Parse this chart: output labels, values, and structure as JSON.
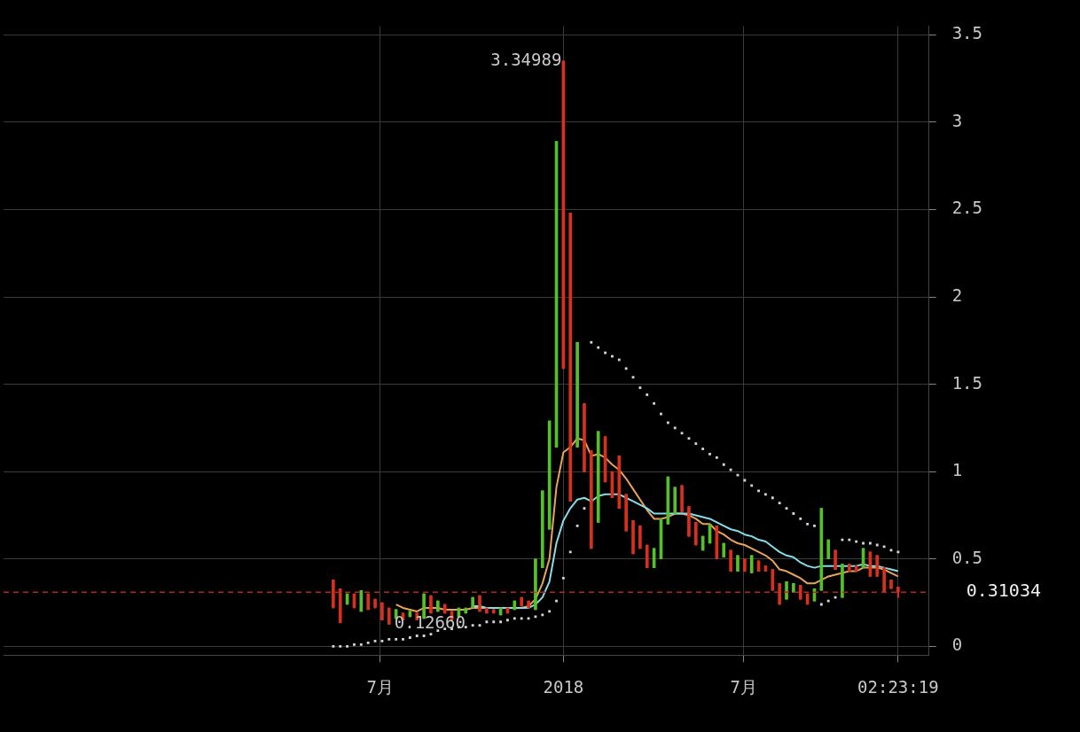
{
  "chart_data": {
    "type": "candlestick",
    "x": [
      "2017-05-15",
      "2017-05-22",
      "2017-05-29",
      "2017-06-05",
      "2017-06-12",
      "2017-06-19",
      "2017-06-26",
      "2017-07-03",
      "2017-07-10",
      "2017-07-17",
      "2017-07-24",
      "2017-07-31",
      "2017-08-07",
      "2017-08-14",
      "2017-08-21",
      "2017-08-28",
      "2017-09-04",
      "2017-09-11",
      "2017-09-18",
      "2017-09-25",
      "2017-10-02",
      "2017-10-09",
      "2017-10-16",
      "2017-10-23",
      "2017-10-30",
      "2017-11-06",
      "2017-11-13",
      "2017-11-20",
      "2017-11-27",
      "2017-12-04",
      "2017-12-11",
      "2017-12-18",
      "2017-12-25",
      "2018-01-01",
      "2018-01-08",
      "2018-01-15",
      "2018-01-22",
      "2018-01-29",
      "2018-02-05",
      "2018-02-12",
      "2018-02-19",
      "2018-02-26",
      "2018-03-05",
      "2018-03-12",
      "2018-03-19",
      "2018-03-26",
      "2018-04-02",
      "2018-04-09",
      "2018-04-16",
      "2018-04-23",
      "2018-04-30",
      "2018-05-07",
      "2018-05-14",
      "2018-05-21",
      "2018-05-28",
      "2018-06-04",
      "2018-06-11",
      "2018-06-18",
      "2018-06-25",
      "2018-07-02",
      "2018-07-09",
      "2018-07-16",
      "2018-07-23",
      "2018-07-30",
      "2018-08-06",
      "2018-08-13",
      "2018-08-20",
      "2018-08-27",
      "2018-09-03",
      "2018-09-10",
      "2018-09-17",
      "2018-09-24",
      "2018-10-01",
      "2018-10-08",
      "2018-10-15",
      "2018-10-22",
      "2018-10-29",
      "2018-11-05",
      "2018-11-12",
      "2018-11-19",
      "2018-11-26",
      "2018-12-03"
    ],
    "ohlc": [
      [
        0.38,
        0.38,
        0.22,
        0.22
      ],
      [
        0.33,
        0.33,
        0.135,
        0.135
      ],
      [
        0.24,
        0.3,
        0.24,
        0.3
      ],
      [
        0.3,
        0.3,
        0.22,
        0.22
      ],
      [
        0.2,
        0.32,
        0.2,
        0.32
      ],
      [
        0.3,
        0.3,
        0.21,
        0.21
      ],
      [
        0.27,
        0.27,
        0.22,
        0.22
      ],
      [
        0.25,
        0.25,
        0.15,
        0.15
      ],
      [
        0.22,
        0.22,
        0.1266,
        0.1266
      ],
      [
        0.16,
        0.21,
        0.16,
        0.21
      ],
      [
        0.19,
        0.19,
        0.15,
        0.15
      ],
      [
        0.17,
        0.2,
        0.17,
        0.2
      ],
      [
        0.19,
        0.19,
        0.15,
        0.15
      ],
      [
        0.16,
        0.3,
        0.16,
        0.3
      ],
      [
        0.29,
        0.29,
        0.19,
        0.19
      ],
      [
        0.2,
        0.26,
        0.2,
        0.26
      ],
      [
        0.24,
        0.24,
        0.19,
        0.19
      ],
      [
        0.2,
        0.2,
        0.15,
        0.15
      ],
      [
        0.17,
        0.22,
        0.17,
        0.22
      ],
      [
        0.19,
        0.22,
        0.19,
        0.22
      ],
      [
        0.22,
        0.28,
        0.22,
        0.28
      ],
      [
        0.29,
        0.29,
        0.2,
        0.2
      ],
      [
        0.22,
        0.22,
        0.19,
        0.19
      ],
      [
        0.21,
        0.21,
        0.19,
        0.19
      ],
      [
        0.18,
        0.22,
        0.18,
        0.22
      ],
      [
        0.22,
        0.22,
        0.19,
        0.19
      ],
      [
        0.21,
        0.26,
        0.21,
        0.26
      ],
      [
        0.28,
        0.28,
        0.23,
        0.23
      ],
      [
        0.26,
        0.26,
        0.22,
        0.22
      ],
      [
        0.21,
        0.5,
        0.21,
        0.5
      ],
      [
        0.45,
        0.89,
        0.45,
        0.89
      ],
      [
        0.67,
        1.29,
        0.67,
        1.29
      ],
      [
        1.14,
        2.89,
        1.14,
        2.89
      ],
      [
        3.34989,
        3.34989,
        1.59,
        1.59
      ],
      [
        2.48,
        2.48,
        0.83,
        0.83
      ],
      [
        1.14,
        1.74,
        1.14,
        1.74
      ],
      [
        1.39,
        1.39,
        1.0,
        1.0
      ],
      [
        1.12,
        1.12,
        0.56,
        0.56
      ],
      [
        0.71,
        1.23,
        0.71,
        1.23
      ],
      [
        1.2,
        1.2,
        0.94,
        0.94
      ],
      [
        1.0,
        1.0,
        0.85,
        0.85
      ],
      [
        1.09,
        1.09,
        0.79,
        0.79
      ],
      [
        0.87,
        0.87,
        0.66,
        0.66
      ],
      [
        0.72,
        0.72,
        0.53,
        0.53
      ],
      [
        0.69,
        0.69,
        0.56,
        0.56
      ],
      [
        0.58,
        0.58,
        0.45,
        0.45
      ],
      [
        0.45,
        0.56,
        0.45,
        0.56
      ],
      [
        0.5,
        0.73,
        0.5,
        0.73
      ],
      [
        0.7,
        0.97,
        0.7,
        0.97
      ],
      [
        0.76,
        0.91,
        0.76,
        0.91
      ],
      [
        0.92,
        0.92,
        0.77,
        0.77
      ],
      [
        0.8,
        0.8,
        0.63,
        0.63
      ],
      [
        0.71,
        0.71,
        0.58,
        0.58
      ],
      [
        0.55,
        0.63,
        0.55,
        0.63
      ],
      [
        0.59,
        0.7,
        0.59,
        0.7
      ],
      [
        0.69,
        0.69,
        0.5,
        0.5
      ],
      [
        0.51,
        0.59,
        0.51,
        0.59
      ],
      [
        0.55,
        0.55,
        0.43,
        0.43
      ],
      [
        0.43,
        0.52,
        0.43,
        0.52
      ],
      [
        0.5,
        0.5,
        0.43,
        0.43
      ],
      [
        0.42,
        0.52,
        0.42,
        0.52
      ],
      [
        0.49,
        0.49,
        0.43,
        0.43
      ],
      [
        0.46,
        0.46,
        0.43,
        0.43
      ],
      [
        0.44,
        0.44,
        0.32,
        0.32
      ],
      [
        0.36,
        0.36,
        0.24,
        0.24
      ],
      [
        0.27,
        0.37,
        0.27,
        0.37
      ],
      [
        0.31,
        0.36,
        0.31,
        0.36
      ],
      [
        0.35,
        0.35,
        0.27,
        0.27
      ],
      [
        0.3,
        0.3,
        0.24,
        0.24
      ],
      [
        0.26,
        0.33,
        0.26,
        0.33
      ],
      [
        0.32,
        0.79,
        0.32,
        0.79
      ],
      [
        0.5,
        0.61,
        0.5,
        0.61
      ],
      [
        0.55,
        0.55,
        0.44,
        0.44
      ],
      [
        0.28,
        0.47,
        0.28,
        0.47
      ],
      [
        0.47,
        0.47,
        0.43,
        0.43
      ],
      [
        0.46,
        0.46,
        0.43,
        0.43
      ],
      [
        0.45,
        0.56,
        0.45,
        0.56
      ],
      [
        0.54,
        0.54,
        0.4,
        0.4
      ],
      [
        0.52,
        0.52,
        0.4,
        0.4
      ],
      [
        0.45,
        0.45,
        0.31,
        0.31
      ],
      [
        0.38,
        0.38,
        0.33,
        0.33
      ],
      [
        0.34,
        0.34,
        0.28,
        0.31034
      ]
    ],
    "colors": [
      "#d9301e",
      "#d9301e",
      "#56c02b",
      "#d9301e",
      "#56c02b",
      "#d9301e",
      "#d9301e",
      "#d9301e",
      "#d9301e",
      "#56c02b",
      "#d9301e",
      "#56c02b",
      "#d9301e",
      "#56c02b",
      "#d9301e",
      "#56c02b",
      "#d9301e",
      "#d9301e",
      "#56c02b",
      "#56c02b",
      "#56c02b",
      "#d9301e",
      "#d9301e",
      "#d9301e",
      "#56c02b",
      "#d9301e",
      "#56c02b",
      "#d9301e",
      "#d9301e",
      "#56c02b",
      "#56c02b",
      "#56c02b",
      "#56c02b",
      "#d9301e",
      "#d9301e",
      "#56c02b",
      "#d9301e",
      "#d9301e",
      "#56c02b",
      "#d9301e",
      "#d9301e",
      "#d9301e",
      "#d9301e",
      "#d9301e",
      "#d9301e",
      "#d9301e",
      "#56c02b",
      "#56c02b",
      "#56c02b",
      "#56c02b",
      "#d9301e",
      "#d9301e",
      "#d9301e",
      "#56c02b",
      "#56c02b",
      "#d9301e",
      "#56c02b",
      "#d9301e",
      "#56c02b",
      "#d9301e",
      "#56c02b",
      "#d9301e",
      "#d9301e",
      "#d9301e",
      "#d9301e",
      "#56c02b",
      "#56c02b",
      "#d9301e",
      "#d9301e",
      "#56c02b",
      "#56c02b",
      "#56c02b",
      "#d9301e",
      "#56c02b",
      "#d9301e",
      "#d9301e",
      "#56c02b",
      "#d9301e",
      "#d9301e",
      "#d9301e",
      "#d9301e",
      "#d9301e"
    ],
    "series": [
      {
        "type": "line",
        "color": "#e8a35c",
        "values": [
          null,
          null,
          null,
          null,
          null,
          null,
          null,
          null,
          null,
          0.24,
          0.22,
          0.21,
          0.2,
          0.22,
          0.22,
          0.22,
          0.21,
          0.21,
          0.21,
          0.21,
          0.22,
          0.22,
          0.22,
          0.22,
          0.22,
          0.22,
          0.22,
          0.22,
          0.23,
          0.27,
          0.36,
          0.5,
          0.91,
          1.11,
          1.14,
          1.19,
          1.18,
          1.09,
          1.1,
          1.08,
          1.04,
          1.01,
          0.96,
          0.9,
          0.84,
          0.78,
          0.73,
          0.73,
          0.74,
          0.76,
          0.76,
          0.75,
          0.73,
          0.7,
          0.7,
          0.66,
          0.64,
          0.61,
          0.59,
          0.58,
          0.56,
          0.54,
          0.52,
          0.49,
          0.44,
          0.43,
          0.41,
          0.39,
          0.36,
          0.36,
          0.38,
          0.4,
          0.41,
          0.42,
          0.43,
          0.43,
          0.45,
          0.45,
          0.45,
          0.44,
          0.42,
          0.4
        ]
      },
      {
        "type": "line",
        "color": "#86dde6",
        "values": [
          null,
          null,
          null,
          null,
          null,
          null,
          null,
          null,
          null,
          null,
          null,
          null,
          null,
          null,
          null,
          null,
          null,
          null,
          null,
          null,
          0.23,
          0.23,
          0.22,
          0.22,
          0.22,
          0.22,
          0.22,
          0.22,
          0.22,
          0.24,
          0.28,
          0.37,
          0.59,
          0.72,
          0.79,
          0.84,
          0.85,
          0.83,
          0.86,
          0.87,
          0.87,
          0.87,
          0.85,
          0.83,
          0.81,
          0.79,
          0.76,
          0.76,
          0.76,
          0.76,
          0.76,
          0.76,
          0.75,
          0.74,
          0.73,
          0.71,
          0.69,
          0.67,
          0.66,
          0.64,
          0.63,
          0.61,
          0.6,
          0.57,
          0.54,
          0.52,
          0.51,
          0.48,
          0.46,
          0.45,
          0.46,
          0.46,
          0.46,
          0.46,
          0.46,
          0.46,
          0.47,
          0.46,
          0.46,
          0.45,
          0.44,
          0.43
        ]
      },
      {
        "type": "scatter",
        "color": "#d4d4d4",
        "marker": "square",
        "values": [
          0.0,
          0.0,
          0.0,
          0.01,
          0.01,
          0.02,
          0.03,
          0.03,
          0.04,
          0.04,
          0.04,
          0.05,
          0.06,
          0.06,
          0.07,
          0.09,
          0.1,
          0.1,
          0.11,
          0.11,
          0.12,
          0.12,
          0.14,
          0.14,
          0.14,
          0.15,
          0.16,
          0.16,
          0.16,
          0.17,
          0.18,
          0.2,
          0.26,
          0.39,
          0.54,
          0.69,
          0.79,
          1.74,
          1.71,
          1.68,
          1.66,
          1.64,
          1.59,
          1.54,
          1.48,
          1.44,
          1.39,
          1.33,
          1.28,
          1.25,
          1.22,
          1.19,
          1.16,
          1.13,
          1.1,
          1.08,
          1.04,
          1.01,
          0.98,
          0.95,
          0.92,
          0.89,
          0.87,
          0.85,
          0.82,
          0.79,
          0.76,
          0.73,
          0.7,
          0.69,
          0.24,
          0.26,
          0.28,
          0.61,
          0.61,
          0.6,
          0.59,
          0.59,
          0.58,
          0.57,
          0.55,
          0.54
        ]
      }
    ],
    "xlim": [
      "2016-06-18",
      "2019-01-03"
    ],
    "xticks": [
      {
        "value": "2017-07-01",
        "label": "7月"
      },
      {
        "value": "2018-01-01",
        "label": "2018"
      },
      {
        "value": "2018-07-01",
        "label": "7月"
      },
      {
        "value": "2018-12-03",
        "label": "02:23:19"
      }
    ],
    "ylim": [
      -0.05,
      3.55
    ],
    "yticks": [
      0,
      {
        "value": 0.5,
        "label": "0.5"
      },
      1,
      {
        "value": 1.5,
        "label": "1.5"
      },
      2,
      {
        "value": 2.5,
        "label": "2.5"
      },
      3,
      {
        "value": 3.5,
        "label": "3.5"
      }
    ],
    "grid": true,
    "legend": false,
    "ref_lines": [
      {
        "axis": "y",
        "value": 0.31034,
        "label": "0.31034",
        "color": "#b02a1c",
        "line_style": "dashed"
      }
    ],
    "annotations": [
      {
        "text": "3.34989",
        "x": "2018-01-01",
        "y": 3.34989
      },
      {
        "text": "0.12660",
        "x": "2017-07-10",
        "y": 0.1266
      }
    ]
  }
}
